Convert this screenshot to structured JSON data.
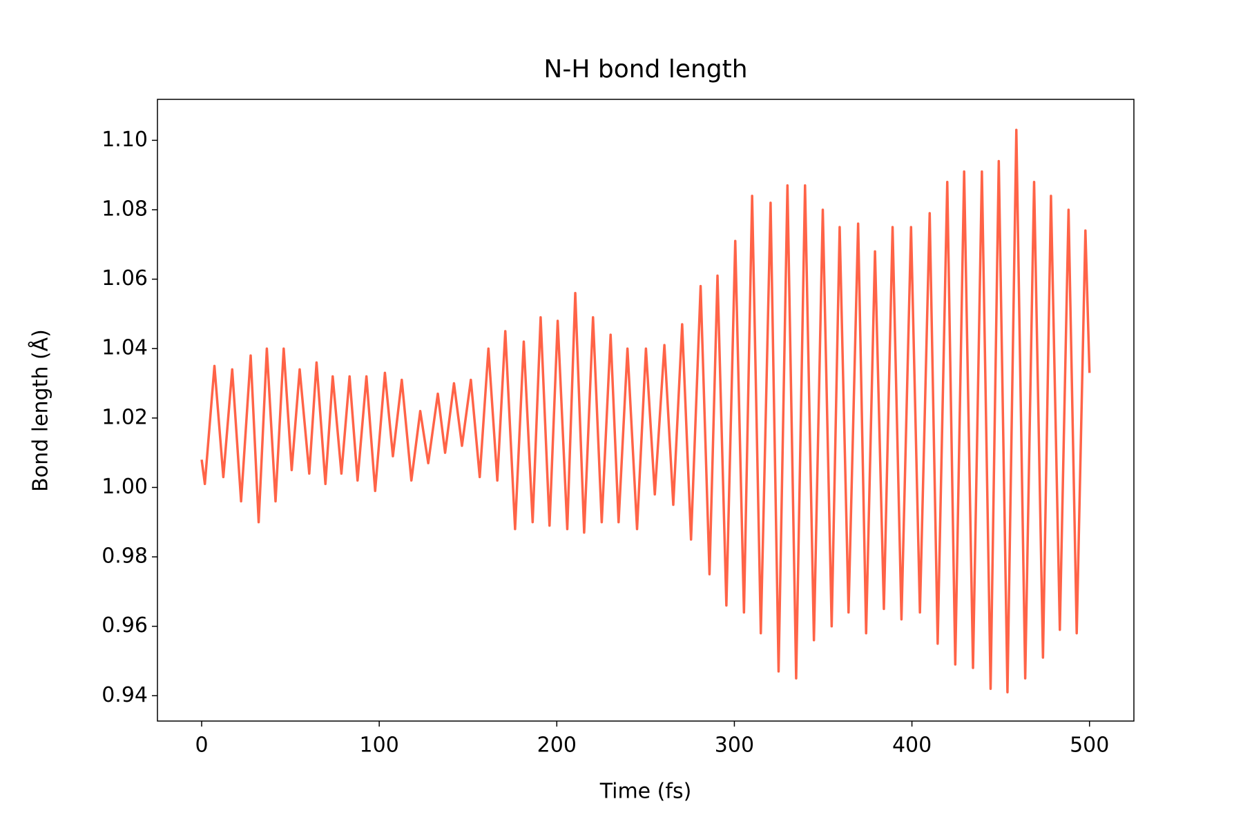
{
  "chart_data": {
    "type": "line",
    "title": "N-H bond length",
    "x_label": "Time (fs)",
    "y_label": "Bond length (Å)",
    "series": [
      {
        "name": "N-H",
        "color": "#ff6347",
        "x": [
          0,
          1.8,
          7.2,
          12.2,
          17.2,
          22.2,
          27.6,
          32.1,
          36.7,
          41.6,
          46.2,
          50.7,
          55.2,
          60.6,
          64.7,
          69.7,
          73.8,
          78.7,
          83.3,
          87.8,
          92.8,
          97.7,
          103.2,
          107.7,
          112.7,
          118.1,
          123.1,
          127.6,
          133.0,
          137.1,
          142.1,
          146.6,
          151.6,
          156.6,
          161.5,
          166.5,
          171.0,
          176.5,
          181.4,
          186.4,
          190.9,
          195.9,
          200.5,
          205.9,
          210.4,
          215.4,
          220.4,
          225.3,
          230.3,
          234.8,
          239.8,
          245.2,
          250.2,
          255.2,
          260.6,
          265.6,
          270.6,
          275.6,
          281.0,
          286.0,
          290.5,
          295.5,
          300.5,
          305.4,
          310.0,
          314.9,
          320.4,
          324.9,
          329.9,
          334.8,
          339.8,
          344.8,
          349.8,
          354.8,
          359.3,
          364.3,
          369.7,
          374.2,
          379.2,
          384.2,
          389.1,
          394.1,
          399.5,
          404.5,
          410.0,
          414.5,
          419.9,
          424.4,
          429.4,
          434.4,
          439.4,
          444.3,
          448.9,
          453.8,
          458.8,
          463.8,
          468.8,
          473.8,
          478.3,
          483.3,
          488.2,
          492.8,
          497.7,
          500
        ],
        "values": [
          1.008,
          1.001,
          1.035,
          1.003,
          1.034,
          0.996,
          1.038,
          0.99,
          1.04,
          0.996,
          1.04,
          1.005,
          1.034,
          1.004,
          1.036,
          1.001,
          1.032,
          1.004,
          1.032,
          1.002,
          1.032,
          0.999,
          1.033,
          1.009,
          1.031,
          1.002,
          1.022,
          1.007,
          1.027,
          1.01,
          1.03,
          1.012,
          1.031,
          1.003,
          1.04,
          1.002,
          1.045,
          0.988,
          1.042,
          0.99,
          1.049,
          0.989,
          1.048,
          0.988,
          1.056,
          0.987,
          1.049,
          0.99,
          1.044,
          0.99,
          1.04,
          0.988,
          1.04,
          0.998,
          1.041,
          0.995,
          1.047,
          0.985,
          1.058,
          0.975,
          1.061,
          0.966,
          1.071,
          0.964,
          1.084,
          0.958,
          1.082,
          0.947,
          1.087,
          0.945,
          1.087,
          0.956,
          1.08,
          0.96,
          1.075,
          0.964,
          1.076,
          0.958,
          1.068,
          0.965,
          1.075,
          0.962,
          1.075,
          0.964,
          1.079,
          0.955,
          1.088,
          0.949,
          1.091,
          0.948,
          1.091,
          0.942,
          1.094,
          0.941,
          1.103,
          0.945,
          1.088,
          0.951,
          1.084,
          0.959,
          1.08,
          0.958,
          1.074,
          1.033
        ]
      }
    ],
    "xlim": [
      -24.9,
      525
    ],
    "ylim": [
      0.9327,
      1.1118
    ],
    "xticks": [
      0,
      100,
      200,
      300,
      400,
      500
    ],
    "yticks": [
      0.94,
      0.96,
      0.98,
      {
        "value": 1.0,
        "label": "1.00"
      },
      1.02,
      1.04,
      1.06,
      1.08,
      {
        "value": 1.1,
        "label": "1.10"
      }
    ]
  }
}
